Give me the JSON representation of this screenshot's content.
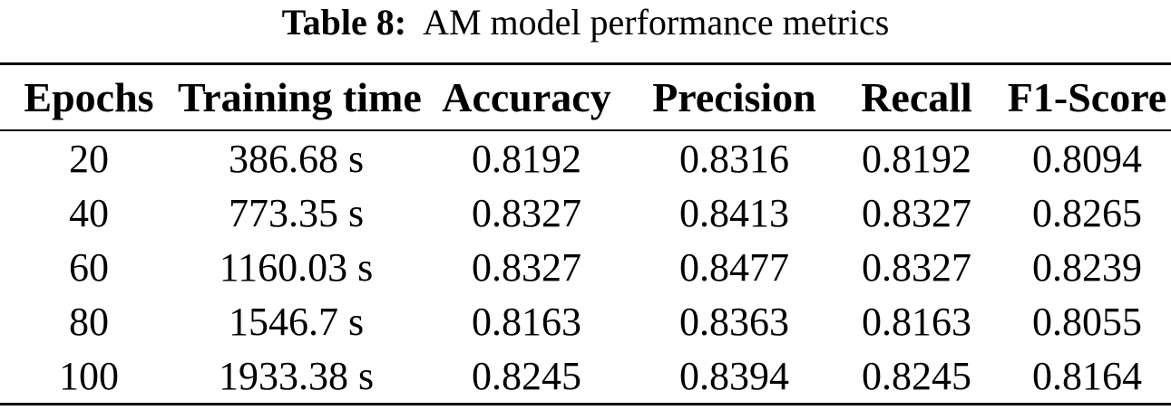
{
  "caption": {
    "label": "Table 8:",
    "text": "AM model performance metrics"
  },
  "table": {
    "columns": [
      "Epochs",
      "Training time",
      "Accuracy",
      "Precision",
      "Recall",
      "F1-Score"
    ],
    "rows": [
      [
        "20",
        "386.68 s",
        "0.8192",
        "0.8316",
        "0.8192",
        "0.8094"
      ],
      [
        "40",
        "773.35 s",
        "0.8327",
        "0.8413",
        "0.8327",
        "0.8265"
      ],
      [
        "60",
        "1160.03 s",
        "0.8327",
        "0.8477",
        "0.8327",
        "0.8239"
      ],
      [
        "80",
        "1546.7 s",
        "0.8163",
        "0.8363",
        "0.8163",
        "0.8055"
      ],
      [
        "100",
        "1933.38 s",
        "0.8245",
        "0.8394",
        "0.8245",
        "0.8164"
      ]
    ]
  },
  "colors": {
    "text": "#000000",
    "background": "#ffffff",
    "rule": "#000000"
  }
}
